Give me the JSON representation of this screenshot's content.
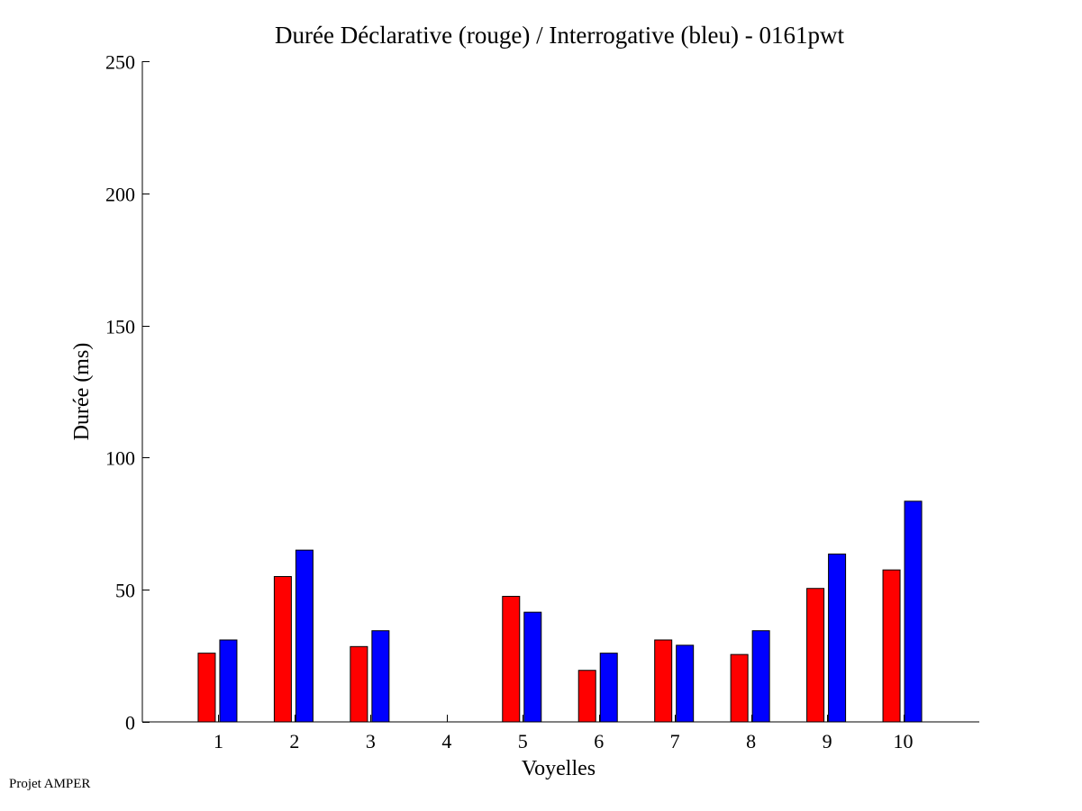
{
  "footer": "Projet AMPER",
  "chart_data": {
    "type": "bar",
    "title": "Durée Déclarative (rouge) / Interrogative (bleu) - 0161pwt",
    "xlabel": "Voyelles",
    "ylabel": "Durée (ms)",
    "categories": [
      "1",
      "2",
      "3",
      "4",
      "5",
      "6",
      "7",
      "8",
      "9",
      "10"
    ],
    "ylim": [
      0,
      250
    ],
    "yticks": [
      0,
      50,
      100,
      150,
      200,
      250
    ],
    "grid": false,
    "series": [
      {
        "color": "#ff0000",
        "values": [
          26,
          55,
          28.5,
          0,
          47.5,
          19.5,
          31,
          25.5,
          50.5,
          57.5
        ]
      },
      {
        "color": "#0000ff",
        "values": [
          31,
          65,
          34.5,
          0,
          41.5,
          26,
          29,
          34.5,
          63.5,
          83.5
        ]
      }
    ]
  }
}
